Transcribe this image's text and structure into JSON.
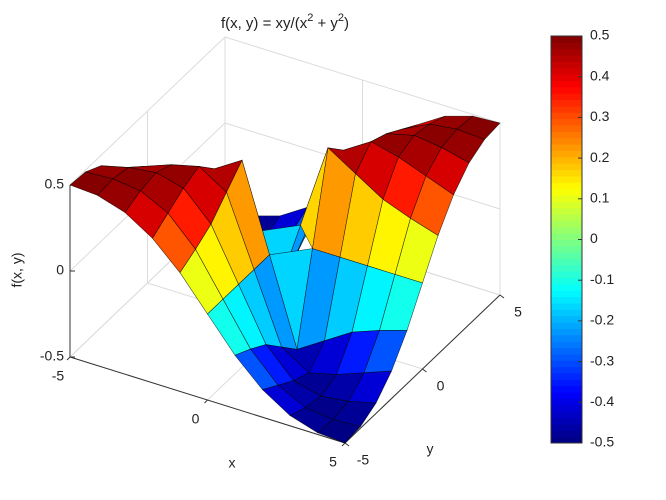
{
  "chart_data": {
    "type": "surface",
    "title": [
      "f(x, y) = xy/(x",
      "2",
      " + y",
      "2",
      ")"
    ],
    "xlabel": "x",
    "ylabel": "y",
    "zlabel": "f(x, y)",
    "x": [
      -5,
      -4,
      -3,
      -2,
      -1,
      0,
      1,
      2,
      3,
      4,
      5
    ],
    "y": [
      -5,
      -4,
      -3,
      -2,
      -1,
      0,
      1,
      2,
      3,
      4,
      5
    ],
    "z": [
      [
        0.5,
        0.49,
        0.44,
        0.34,
        0.19,
        0,
        -0.19,
        -0.34,
        -0.44,
        -0.49,
        -0.5
      ],
      [
        0.49,
        0.5,
        0.48,
        0.4,
        0.24,
        0,
        -0.24,
        -0.4,
        -0.48,
        -0.5,
        -0.49
      ],
      [
        0.44,
        0.48,
        0.5,
        0.46,
        0.3,
        0,
        -0.3,
        -0.46,
        -0.5,
        -0.48,
        -0.44
      ],
      [
        0.34,
        0.4,
        0.46,
        0.5,
        0.4,
        0,
        -0.4,
        -0.5,
        -0.46,
        -0.4,
        -0.34
      ],
      [
        0.19,
        0.24,
        0.3,
        0.4,
        0.5,
        0,
        -0.5,
        -0.4,
        -0.3,
        -0.24,
        -0.19
      ],
      [
        0,
        0,
        0,
        0,
        0,
        null,
        0,
        0,
        0,
        0,
        0
      ],
      [
        -0.19,
        -0.24,
        -0.3,
        -0.4,
        -0.5,
        0,
        0.5,
        0.4,
        0.3,
        0.24,
        0.19
      ],
      [
        -0.34,
        -0.4,
        -0.46,
        -0.5,
        -0.4,
        0,
        0.4,
        0.5,
        0.46,
        0.4,
        0.34
      ],
      [
        -0.44,
        -0.48,
        -0.5,
        -0.46,
        -0.3,
        0,
        0.3,
        0.46,
        0.5,
        0.48,
        0.44
      ],
      [
        -0.49,
        -0.5,
        -0.48,
        -0.4,
        -0.24,
        0,
        0.24,
        0.4,
        0.48,
        0.5,
        0.49
      ],
      [
        -0.5,
        -0.49,
        -0.44,
        -0.34,
        -0.19,
        0,
        0.19,
        0.34,
        0.44,
        0.49,
        0.5
      ]
    ],
    "xlim": [
      -5,
      5
    ],
    "ylim": [
      -5,
      5
    ],
    "zlim": [
      -0.5,
      0.5
    ],
    "xticks": [
      -5,
      0,
      5
    ],
    "yticks": [
      -5,
      0,
      5
    ],
    "zticks": [
      -0.5,
      0,
      0.5
    ],
    "colormap": "jet",
    "clim": [
      -0.5,
      0.5
    ],
    "cticks": [
      -0.5,
      -0.4,
      -0.3,
      -0.2,
      -0.1,
      0,
      0.1,
      0.2,
      0.3,
      0.4,
      0.5
    ],
    "grid": true
  }
}
